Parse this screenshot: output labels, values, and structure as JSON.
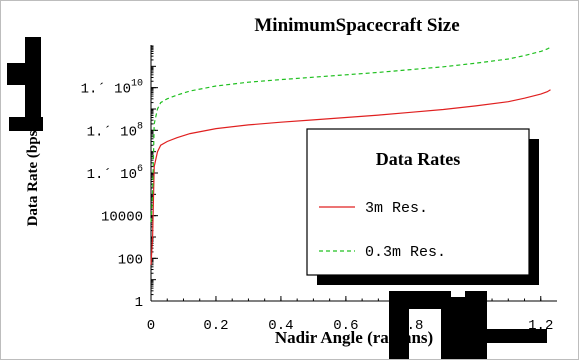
{
  "chart_data": {
    "type": "line",
    "title": "MinimumSpacecraft Size",
    "xlabel": "Nadir Angle (radians)",
    "ylabel": "Data Rate (bps)",
    "xlim": [
      0,
      1.25
    ],
    "ylim": [
      1,
      1000000000000
    ],
    "yscale": "log",
    "x_ticks": [
      "0",
      "0.2",
      "0.4",
      "0.6",
      "0.8",
      "1",
      "1.2"
    ],
    "y_ticks": [
      {
        "label": "1",
        "value": 1
      },
      {
        "label": "100",
        "value": 100
      },
      {
        "label": "10000",
        "value": 10000
      },
      {
        "label": "1.´ 10",
        "sup": "6",
        "value": 1000000
      },
      {
        "label": "1.´ 10",
        "sup": "8",
        "value": 100000000
      },
      {
        "label": "1.´ 10",
        "sup": "10",
        "value": 10000000000
      }
    ],
    "legend": {
      "title": "Data Rates",
      "position": "right-center",
      "entries": [
        {
          "name": "3m Res.",
          "color": "#e02020",
          "dash": "solid"
        },
        {
          "name": "0.3m Res.",
          "color": "#20c020",
          "dash": "dashed"
        }
      ]
    },
    "series": [
      {
        "name": "3m Res.",
        "color": "#e02020",
        "x": [
          0.0,
          0.005,
          0.01,
          0.02,
          0.03,
          0.05,
          0.08,
          0.12,
          0.2,
          0.3,
          0.4,
          0.5,
          0.6,
          0.7,
          0.8,
          0.9,
          1.0,
          1.1,
          1.15,
          1.2,
          1.22,
          1.23
        ],
        "y": [
          50,
          1000,
          2000000,
          10000000,
          20000000,
          30000000,
          45000000,
          70000000,
          120000000,
          180000000,
          240000000,
          310000000,
          400000000,
          520000000,
          700000000,
          950000000,
          1400000000,
          2200000000,
          3200000000,
          5000000000,
          6500000000,
          8000000000
        ]
      },
      {
        "name": "0.3m Res.",
        "color": "#20c020",
        "x": [
          0.0,
          0.005,
          0.01,
          0.02,
          0.03,
          0.05,
          0.08,
          0.12,
          0.2,
          0.3,
          0.4,
          0.5,
          0.6,
          0.7,
          0.8,
          0.9,
          1.0,
          1.1,
          1.15,
          1.2,
          1.22,
          1.23
        ],
        "y": [
          5000,
          100000,
          200000000,
          1000000000,
          2000000000,
          3000000000,
          4500000000,
          7000000000,
          12000000000,
          18000000000,
          24000000000,
          31000000000,
          40000000000,
          52000000000,
          70000000000,
          95000000000,
          140000000000,
          220000000000,
          320000000000,
          500000000000,
          650000000000,
          800000000000
        ]
      }
    ]
  }
}
